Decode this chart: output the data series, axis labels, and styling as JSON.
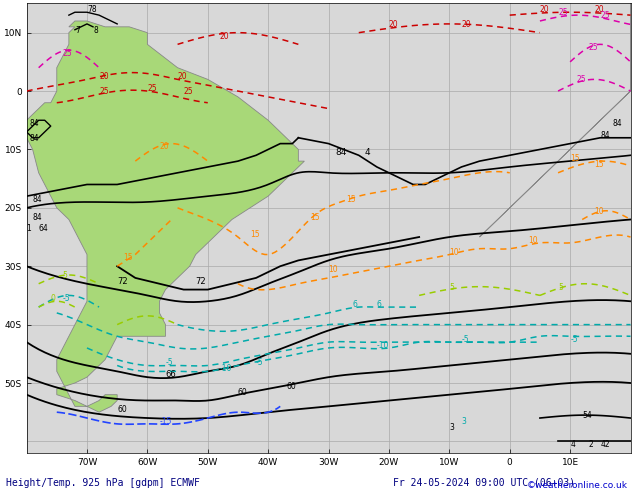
{
  "title_left": "Height/Temp. 925 hPa [gdpm] ECMWF",
  "title_right": "Fr 24-05-2024 09:00 UTC (06+03)",
  "watermark": "©weatheronline.co.uk",
  "ocean_color": "#d8d8d8",
  "land_color": "#a8d878",
  "land_edge": "#888888",
  "grid_color": "#aaaaaa",
  "title_color": "#000080",
  "watermark_color": "#0000cc",
  "fig_width": 6.34,
  "fig_height": 4.9,
  "dpi": 100,
  "xlim": [
    -80,
    20
  ],
  "ylim": [
    -62,
    15
  ],
  "xtick_vals": [
    -70,
    -60,
    -50,
    -40,
    -30,
    -20,
    -10,
    0,
    10
  ],
  "ytick_vals": [
    -50,
    -40,
    -30,
    -20,
    -10,
    0,
    10
  ],
  "tick_fontsize": 6.5,
  "title_fontsize": 7.0
}
